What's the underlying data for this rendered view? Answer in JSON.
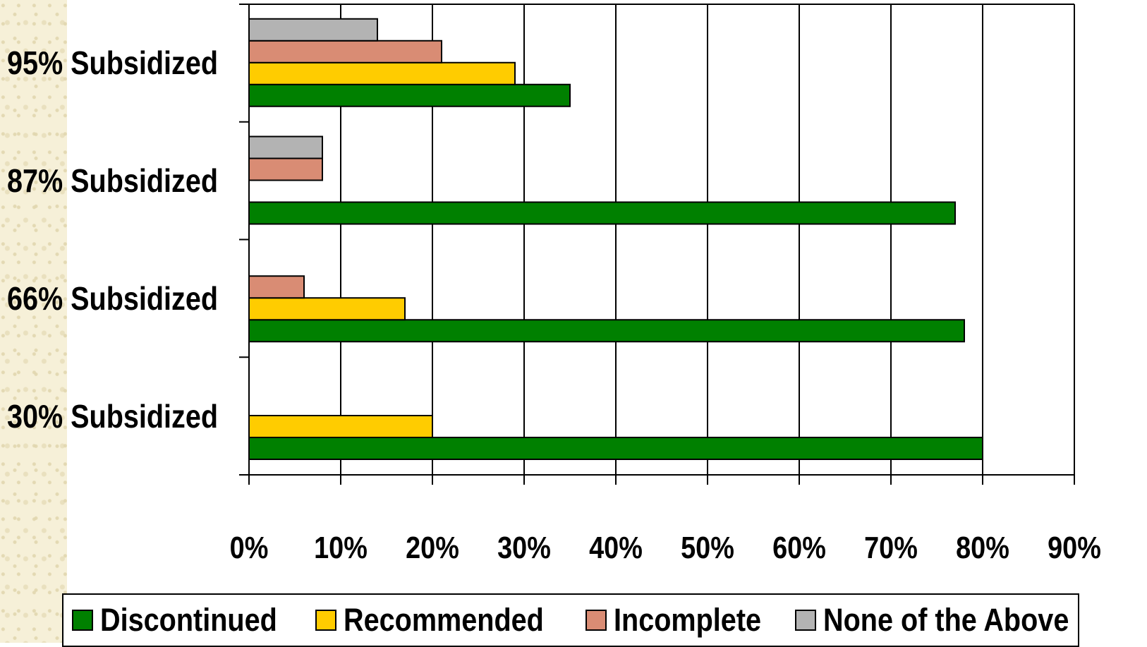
{
  "chart_data": {
    "type": "bar",
    "orientation": "horizontal",
    "categories": [
      "95% Subsidized",
      "87% Subsidized",
      "66% Subsidized",
      "30% Subsidized"
    ],
    "series": [
      {
        "name": "Discontinued",
        "color": "#008000",
        "values": [
          35,
          77,
          78,
          80
        ]
      },
      {
        "name": "Recommended",
        "color": "#ffcc00",
        "values": [
          29,
          0,
          17,
          20
        ]
      },
      {
        "name": "Incomplete",
        "color": "#d98c74",
        "values": [
          21,
          8,
          6,
          0
        ]
      },
      {
        "name": "None of the Above",
        "color": "#b3b3b3",
        "values": [
          14,
          8,
          0,
          0
        ]
      }
    ],
    "x_ticks": [
      "0%",
      "10%",
      "20%",
      "30%",
      "40%",
      "50%",
      "60%",
      "70%",
      "80%",
      "90%"
    ],
    "xlim": [
      0,
      90
    ],
    "grid": true,
    "legend_placement": "bottom"
  }
}
